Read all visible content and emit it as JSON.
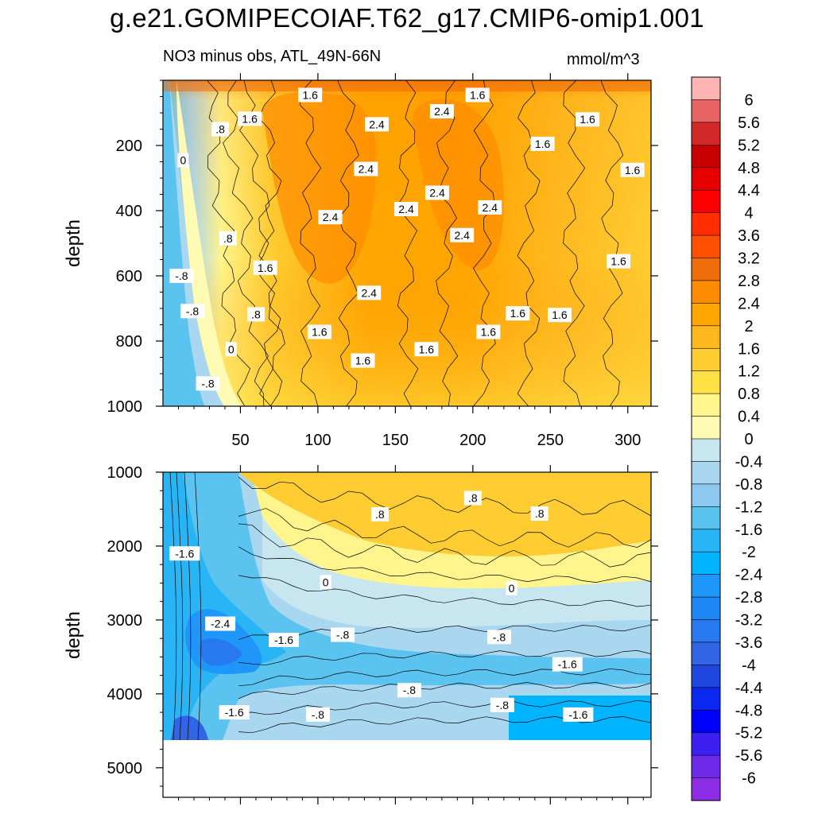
{
  "figure": {
    "title": "g.e21.GOMIPECOIAF.T62_g17.CMIP6-omip1.001",
    "subtitle": "NO3 minus obs, ATL_49N-66N",
    "units": "mmol/m^3"
  },
  "colors": {
    "frame": "#000000",
    "missing": "#ffffff",
    "contour_line": "#000000"
  },
  "chart_data": [
    {
      "type": "heatmap",
      "panel": "upper",
      "ylabel": "depth",
      "xlabel": "",
      "xlim": [
        0,
        315
      ],
      "ylim": [
        1000,
        0
      ],
      "x_ticks": [
        50,
        100,
        150,
        200,
        250,
        300
      ],
      "x_tick_labels": [
        "50",
        "100",
        "150",
        "200",
        "250",
        "300"
      ],
      "y_ticks": [
        200,
        400,
        600,
        800,
        1000
      ],
      "y_tick_labels": [
        "200",
        "400",
        "600",
        "800",
        "1000"
      ],
      "field_description_points": [
        {
          "x": 5,
          "y": 800,
          "value": -1.4
        },
        {
          "x": 30,
          "y": 500,
          "value": 0.6
        },
        {
          "x": 120,
          "y": 450,
          "value": 2.6
        },
        {
          "x": 250,
          "y": 900,
          "value": 1.4
        }
      ],
      "contour_labels": [
        {
          "text": "1.6",
          "x": 95,
          "y": 45
        },
        {
          "text": "1.6",
          "x": 203,
          "y": 45
        },
        {
          "text": "2.4",
          "x": 180,
          "y": 95
        },
        {
          "text": "1.6",
          "x": 56,
          "y": 118
        },
        {
          "text": "2.4",
          "x": 138,
          "y": 135
        },
        {
          "text": "1.6",
          "x": 274,
          "y": 120
        },
        {
          "text": ".8",
          "x": 37,
          "y": 150
        },
        {
          "text": "1.6",
          "x": 245,
          "y": 195
        },
        {
          "text": "0",
          "x": 13,
          "y": 245
        },
        {
          "text": "2.4",
          "x": 131,
          "y": 272
        },
        {
          "text": "1.6",
          "x": 303,
          "y": 275
        },
        {
          "text": "2.4",
          "x": 177,
          "y": 345
        },
        {
          "text": "2.4",
          "x": 108,
          "y": 420
        },
        {
          "text": "2.4",
          "x": 157,
          "y": 395
        },
        {
          "text": "2.4",
          "x": 211,
          "y": 390
        },
        {
          "text": ".8",
          "x": 42,
          "y": 485
        },
        {
          "text": "2.4",
          "x": 193,
          "y": 475
        },
        {
          "text": "1.6",
          "x": 66,
          "y": 575
        },
        {
          "text": "1.6",
          "x": 294,
          "y": 555
        },
        {
          "text": "-.8",
          "x": 12,
          "y": 600
        },
        {
          "text": "2.4",
          "x": 133,
          "y": 652
        },
        {
          "text": "-.8",
          "x": 19,
          "y": 708
        },
        {
          "text": ".8",
          "x": 60,
          "y": 718
        },
        {
          "text": "1.6",
          "x": 229,
          "y": 715
        },
        {
          "text": "1.6",
          "x": 256,
          "y": 720
        },
        {
          "text": "1.6",
          "x": 101,
          "y": 772
        },
        {
          "text": "1.6",
          "x": 210,
          "y": 772
        },
        {
          "text": "0",
          "x": 44,
          "y": 825
        },
        {
          "text": "1.6",
          "x": 170,
          "y": 825
        },
        {
          "text": "1.6",
          "x": 129,
          "y": 860
        },
        {
          "text": "-.8",
          "x": 29,
          "y": 930
        }
      ]
    },
    {
      "type": "heatmap",
      "panel": "lower",
      "ylabel": "depth",
      "xlabel": "",
      "xlim": [
        0,
        315
      ],
      "ylim": [
        5400,
        1000
      ],
      "y_ticks": [
        1000,
        2000,
        3000,
        4000,
        5000
      ],
      "y_tick_labels": [
        "1000",
        "2000",
        "3000",
        "4000",
        "5000"
      ],
      "missing_below_depth": 4600,
      "contour_labels": [
        {
          "text": ".8",
          "x": 200,
          "y": 1350
        },
        {
          "text": ".8",
          "x": 140,
          "y": 1570
        },
        {
          "text": ".8",
          "x": 243,
          "y": 1560
        },
        {
          "text": "-1.6",
          "x": 14,
          "y": 2100
        },
        {
          "text": "0",
          "x": 105,
          "y": 2490
        },
        {
          "text": "0",
          "x": 225,
          "y": 2570
        },
        {
          "text": "-2.4",
          "x": 37,
          "y": 3050
        },
        {
          "text": "-1.6",
          "x": 78,
          "y": 3270
        },
        {
          "text": "-.8",
          "x": 116,
          "y": 3200
        },
        {
          "text": "-.8",
          "x": 217,
          "y": 3230
        },
        {
          "text": "-1.6",
          "x": 261,
          "y": 3600
        },
        {
          "text": "-.8",
          "x": 159,
          "y": 3950
        },
        {
          "text": "-1.6",
          "x": 46,
          "y": 4250
        },
        {
          "text": "-.8",
          "x": 100,
          "y": 4280
        },
        {
          "text": "-.8",
          "x": 219,
          "y": 4150
        },
        {
          "text": "-1.6",
          "x": 268,
          "y": 4280
        }
      ]
    }
  ],
  "colorbar": {
    "levels": [
      6,
      5.6,
      5.2,
      4.8,
      4.4,
      4,
      3.6,
      3.2,
      2.8,
      2.4,
      2,
      1.6,
      1.2,
      0.8,
      0.4,
      0,
      -0.4,
      -0.8,
      -1.2,
      -1.6,
      -2,
      -2.4,
      -2.8,
      -3.2,
      -3.6,
      -4,
      -4.4,
      -4.8,
      -5.2,
      -5.6,
      -6
    ],
    "labels": [
      "6",
      "5.6",
      "5.2",
      "4.8",
      "4.4",
      "4",
      "3.6",
      "3.2",
      "2.8",
      "2.4",
      "2",
      "1.6",
      "1.2",
      "0.8",
      "0.4",
      "0",
      "-0.4",
      "-0.8",
      "-1.2",
      "-1.6",
      "-2",
      "-2.4",
      "-2.8",
      "-3.2",
      "-3.6",
      "-4",
      "-4.4",
      "-4.8",
      "-5.2",
      "-5.6",
      "-6"
    ],
    "colors": [
      "#ffb4b4",
      "#e86464",
      "#d22828",
      "#c80000",
      "#e60000",
      "#ff0000",
      "#ff2d00",
      "#ff5000",
      "#f06e0a",
      "#ff8c00",
      "#ffa500",
      "#ffb91e",
      "#ffcd32",
      "#ffe146",
      "#fff58c",
      "#fffab4",
      "#c8e6f0",
      "#aad7f0",
      "#8cc8f0",
      "#5ac3f0",
      "#28b4f5",
      "#00b4ff",
      "#1e96fa",
      "#1e87f5",
      "#2878f0",
      "#3264e6",
      "#1e46dc",
      "#0a28f0",
      "#0000ff",
      "#3c1ef0",
      "#6e2aea",
      "#8c2ce6"
    ]
  }
}
